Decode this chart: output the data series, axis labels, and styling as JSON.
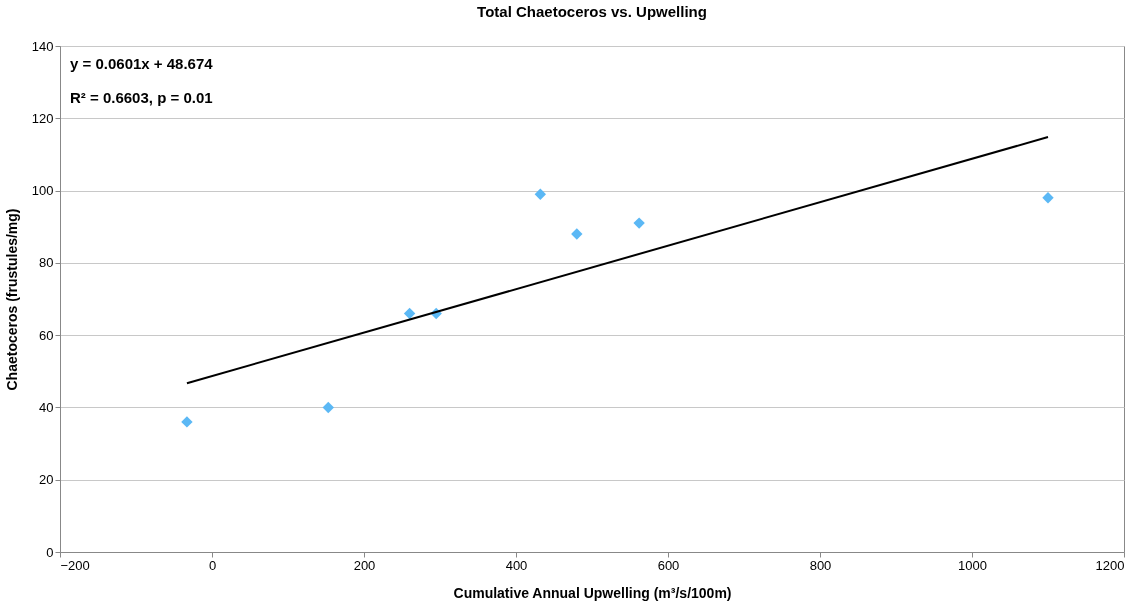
{
  "chart_data": {
    "type": "scatter",
    "title": "Total Chaetoceros vs. Upwelling",
    "xlabel": "Cumulative Annual Upwelling (m³/s/100m)",
    "ylabel": "Chaetoceros (frustules/mg)",
    "series": [
      {
        "type": "scatter",
        "color": "#5bb8f5",
        "marker": "diamond",
        "x": [
          -33,
          153,
          260,
          295,
          432,
          480,
          562,
          1100
        ],
        "values": [
          36,
          40,
          66,
          66,
          99,
          88,
          91,
          98
        ]
      },
      {
        "type": "line",
        "color": "#000000",
        "line_style": "solid",
        "x": [
          -33,
          1100
        ],
        "values": [
          46.7,
          114.8
        ]
      }
    ],
    "annotations": [
      "y = 0.0601x + 48.674",
      "R² = 0.6603, p = 0.01"
    ],
    "xlim": [
      -200,
      1200
    ],
    "xticks": [
      -200,
      0,
      200,
      400,
      600,
      800,
      1000,
      1200
    ],
    "ylim": [
      0,
      140
    ],
    "yticks": [
      0,
      20,
      40,
      60,
      80,
      100,
      120,
      140
    ],
    "grid": "y"
  }
}
